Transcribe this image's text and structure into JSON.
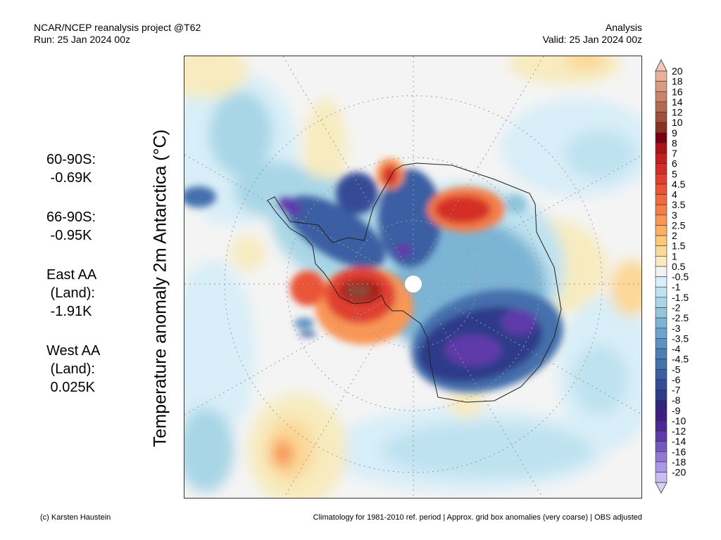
{
  "header": {
    "source": "NCAR/NCEP reanalysis project @T62",
    "run": "Run: 25 Jan 2024 00z",
    "type": "Analysis",
    "valid": "Valid: 25 Jan 2024 00z"
  },
  "title": "Temperature anomaly 2m Antarctica (°C)",
  "stats": [
    {
      "lines": [
        "60-90S:",
        " -0.69K"
      ]
    },
    {
      "lines": [
        "66-90S:",
        " -0.95K"
      ]
    },
    {
      "lines": [
        "East AA",
        " (Land):",
        " -1.91K"
      ]
    },
    {
      "lines": [
        "West AA",
        " (Land):",
        " 0.025K"
      ]
    }
  ],
  "colorbar": {
    "labels": [
      "20",
      "18",
      "16",
      "14",
      "12",
      "10",
      "9",
      "8",
      "7",
      "6",
      "5",
      "4.5",
      "4",
      "3.5",
      "3",
      "2.5",
      "2",
      "1.5",
      "1",
      "0.5",
      "-0.5",
      "-1",
      "-1.5",
      "-2",
      "-2.5",
      "-3",
      "-3.5",
      "-4",
      "-4.5",
      "-5",
      "-6",
      "-7",
      "-8",
      "-9",
      "-10",
      "-12",
      "-14",
      "-16",
      "-18",
      "-20"
    ],
    "colors": [
      "#e6b09a",
      "#d89a80",
      "#c8846a",
      "#b46a50",
      "#a0503a",
      "#8c3020",
      "#7a0010",
      "#a81418",
      "#c4201f",
      "#d42d28",
      "#e04030",
      "#ea5438",
      "#f06a40",
      "#f47e48",
      "#f89656",
      "#fbae64",
      "#fdc878",
      "#fcd898",
      "#f7ebbf",
      "#f2f2f2",
      "#d8eef8",
      "#bfe2f0",
      "#a8d6e6",
      "#92c6dc",
      "#7cb4d4",
      "#6aa4cc",
      "#5c92c2",
      "#4e80b6",
      "#4470ac",
      "#3a5ea2",
      "#344c96",
      "#2e3a8a",
      "#30247c",
      "#3e1e86",
      "#4c2896",
      "#5e3aaa",
      "#7458c0",
      "#9078d4",
      "#ab98e4",
      "#c8bcf2"
    ],
    "top_color": "#f5c8b2",
    "bottom_color": "#d8d0f8"
  },
  "footer": {
    "credit": "(c) Karsten Haustein",
    "note": "Climatology for 1981-2010 ref. period | Approx. grid box anomalies (very coarse) | OBS adjusted"
  }
}
